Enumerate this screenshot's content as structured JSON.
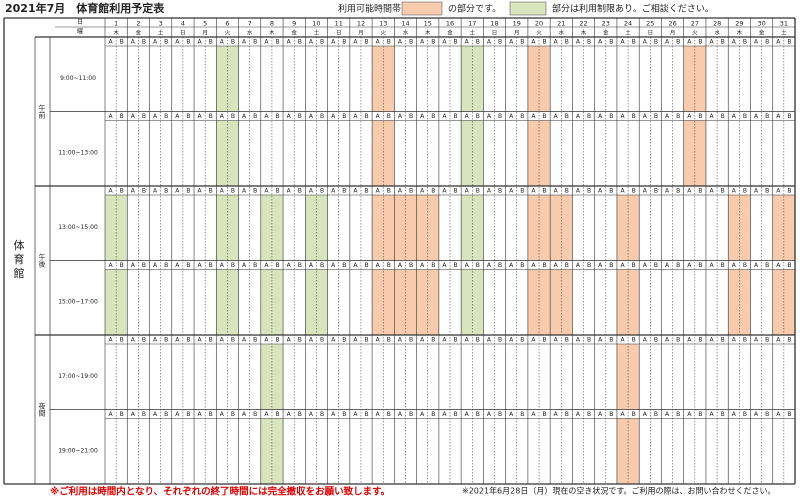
{
  "header": {
    "title": "2021年7月　体育館利用予定表",
    "legend": {
      "prefix": "利用可能時間帯は",
      "available_text": "の部分です。",
      "restricted_text": "部分は利用制限あり。ご相談ください。",
      "available_color": "#f8cbad",
      "restricted_color": "#d8e4bc"
    }
  },
  "table": {
    "day_header": "日",
    "weekday_header": "曜",
    "facility": "体育館",
    "halves": [
      "A",
      "B"
    ],
    "days": [
      {
        "day": 1,
        "weekday": "木"
      },
      {
        "day": 2,
        "weekday": "金"
      },
      {
        "day": 3,
        "weekday": "土"
      },
      {
        "day": 4,
        "weekday": "日"
      },
      {
        "day": 5,
        "weekday": "月"
      },
      {
        "day": 6,
        "weekday": "火"
      },
      {
        "day": 7,
        "weekday": "水"
      },
      {
        "day": 8,
        "weekday": "木"
      },
      {
        "day": 9,
        "weekday": "金"
      },
      {
        "day": 10,
        "weekday": "土"
      },
      {
        "day": 11,
        "weekday": "日"
      },
      {
        "day": 12,
        "weekday": "月"
      },
      {
        "day": 13,
        "weekday": "火"
      },
      {
        "day": 14,
        "weekday": "水"
      },
      {
        "day": 15,
        "weekday": "木"
      },
      {
        "day": 16,
        "weekday": "金"
      },
      {
        "day": 17,
        "weekday": "土"
      },
      {
        "day": 18,
        "weekday": "日"
      },
      {
        "day": 19,
        "weekday": "月"
      },
      {
        "day": 20,
        "weekday": "火"
      },
      {
        "day": 21,
        "weekday": "水"
      },
      {
        "day": 22,
        "weekday": "木"
      },
      {
        "day": 23,
        "weekday": "金"
      },
      {
        "day": 24,
        "weekday": "土"
      },
      {
        "day": 25,
        "weekday": "日"
      },
      {
        "day": 26,
        "weekday": "月"
      },
      {
        "day": 27,
        "weekday": "火"
      },
      {
        "day": 28,
        "weekday": "水"
      },
      {
        "day": 29,
        "weekday": "木"
      },
      {
        "day": 30,
        "weekday": "金"
      },
      {
        "day": 31,
        "weekday": "土"
      }
    ],
    "periods": [
      {
        "label": "午前",
        "slots": [
          {
            "time": "9:00~11:00",
            "available_days": [
              13,
              20,
              27
            ],
            "restricted_days": [
              6,
              17
            ]
          },
          {
            "time": "11:00~13:00",
            "available_days": [
              13,
              20,
              27
            ],
            "restricted_days": [
              6,
              17
            ]
          }
        ]
      },
      {
        "label": "午後",
        "slots": [
          {
            "time": "13:00~15:00",
            "available_days": [
              13,
              14,
              15,
              20,
              21,
              24,
              29,
              31
            ],
            "restricted_days": [
              1,
              6,
              8,
              10,
              17
            ]
          },
          {
            "time": "15:00~17:00",
            "available_days": [
              13,
              14,
              15,
              20,
              21,
              24,
              29,
              31
            ],
            "restricted_days": [
              1,
              6,
              8,
              10,
              17
            ]
          }
        ]
      },
      {
        "label": "夜間",
        "slots": [
          {
            "time": "17:00~19:00",
            "available_days": [
              24
            ],
            "restricted_days": [
              8
            ]
          },
          {
            "time": "19:00~21:00",
            "available_days": [
              24
            ],
            "restricted_days": [
              8
            ]
          }
        ]
      }
    ]
  },
  "footer": {
    "notice": "※ご利用は時間内となり、それぞれの終了時間には完全撤収をお願い致します。",
    "status": "※2021年6月28日（月）現在の空き状況です。ご利用の際は、お問い合わせください。"
  }
}
